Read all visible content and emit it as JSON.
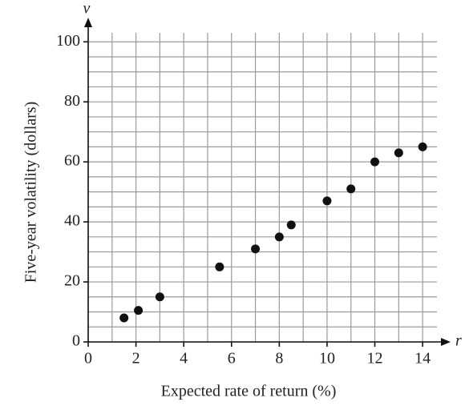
{
  "chart_data": {
    "type": "scatter",
    "x_label": "Expected rate of return (%)",
    "y_label": "Five-year volatility (dollars)",
    "x_axis_letter": "r",
    "y_axis_letter": "v",
    "x": [
      1.5,
      2.1,
      3,
      5.5,
      7,
      8,
      8.5,
      10,
      11,
      12,
      13,
      14
    ],
    "values": [
      8,
      10.5,
      15,
      25,
      31,
      35,
      39,
      47,
      51,
      60,
      63,
      65
    ],
    "color": "#111111",
    "xlim": [
      0,
      14.6
    ],
    "ylim": [
      0,
      103
    ],
    "xticks": [
      0,
      2,
      4,
      6,
      8,
      10,
      12,
      14
    ],
    "yticks": [
      0,
      20,
      40,
      60,
      80,
      100
    ],
    "x_gridlines": [
      0,
      1,
      2,
      3,
      4,
      5,
      6,
      7,
      8,
      9,
      10,
      11,
      12,
      13,
      14
    ],
    "y_gridlines": [
      0,
      5,
      10,
      15,
      20,
      25,
      30,
      35,
      40,
      45,
      50,
      55,
      60,
      65,
      70,
      75,
      80,
      85,
      90,
      95,
      100
    ],
    "grid": true
  }
}
